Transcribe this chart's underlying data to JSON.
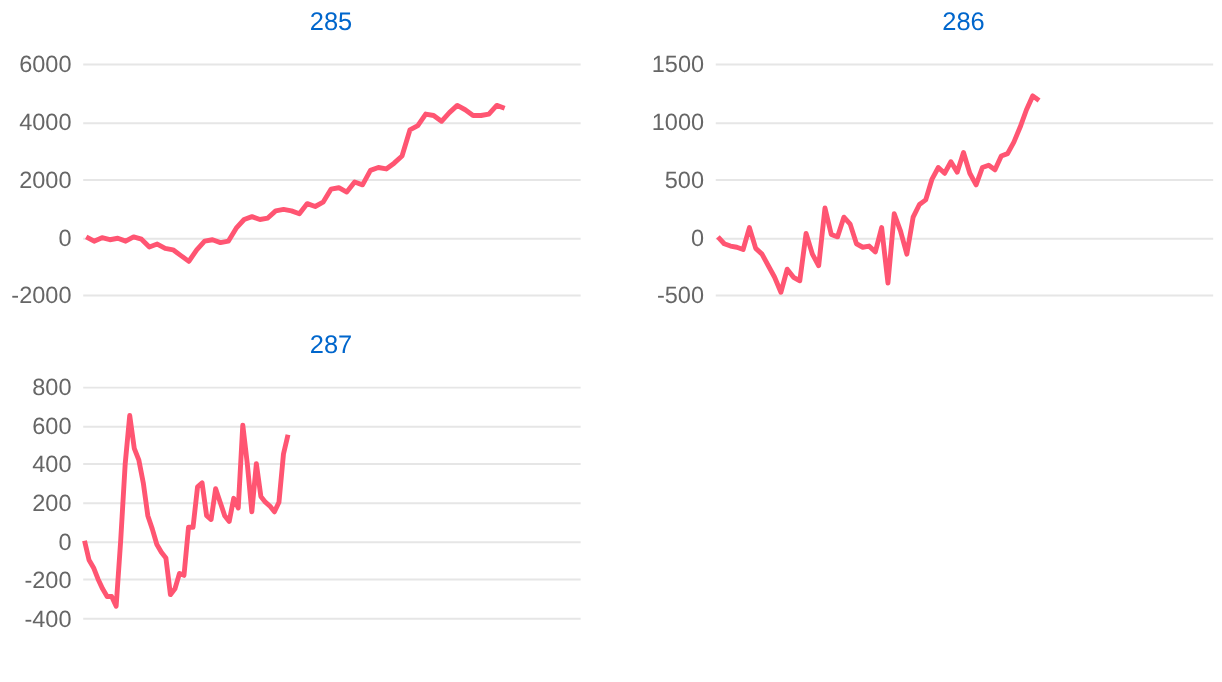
{
  "chart_data": [
    {
      "type": "line",
      "title": "285",
      "tick_labels": "y",
      "grid": "y",
      "ylim": [
        -2000,
        6000
      ],
      "yticks": [
        -2000,
        0,
        2000,
        4000,
        6000
      ],
      "categories": [
        null,
        null,
        null,
        null,
        null,
        null,
        null,
        null,
        null,
        null,
        null,
        null,
        null,
        null,
        null,
        null,
        null,
        null,
        null,
        null,
        null,
        null,
        null,
        null,
        null,
        null,
        null,
        null,
        null,
        null,
        null,
        null,
        null,
        null,
        null,
        null,
        null,
        null,
        null,
        null,
        null,
        null,
        null,
        null,
        null,
        null,
        null,
        null,
        null,
        null,
        null,
        null,
        null,
        null,
        null,
        null,
        null,
        null,
        null,
        null,
        null,
        null,
        null
      ],
      "series": [
        {
          "color": "#ff5572",
          "values": [
            0,
            -150,
            -30,
            -100,
            -50,
            -150,
            0,
            -80,
            -350,
            -250,
            -400,
            -450,
            -650,
            -850,
            -450,
            -150,
            -100,
            -200,
            -150,
            300,
            600,
            700,
            600,
            650,
            900,
            950,
            900,
            800,
            1150,
            1050,
            1200,
            1650,
            1700,
            1550,
            1900,
            1800,
            2300,
            2400,
            2350,
            2550,
            2800,
            3700,
            3850,
            4250,
            4200,
            4000,
            4300,
            4550,
            4400,
            4200,
            4200,
            4250,
            4550,
            4450,
            null,
            null,
            null,
            null,
            null,
            null,
            null,
            null,
            null
          ]
        }
      ]
    },
    {
      "type": "line",
      "title": "286",
      "tick_labels": "y",
      "grid": "y",
      "ylim": [
        -500,
        1500
      ],
      "yticks": [
        -500,
        0,
        500,
        1000,
        1500
      ],
      "categories": [
        null,
        null,
        null,
        null,
        null,
        null,
        null,
        null,
        null,
        null,
        null,
        null,
        null,
        null,
        null,
        null,
        null,
        null,
        null,
        null,
        null,
        null,
        null,
        null,
        null,
        null,
        null,
        null,
        null,
        null,
        null,
        null,
        null,
        null,
        null,
        null,
        null,
        null,
        null,
        null,
        null,
        null,
        null,
        null,
        null,
        null,
        null,
        null,
        null,
        null,
        null,
        null,
        null,
        null,
        null,
        null,
        null,
        null,
        null,
        null,
        null,
        null,
        null,
        null,
        null,
        null,
        null,
        null,
        null,
        null,
        null,
        null,
        null,
        null,
        null,
        null,
        null,
        null,
        null
      ],
      "series": [
        {
          "color": "#ff5572",
          "values": [
            0,
            -60,
            -80,
            -90,
            -110,
            80,
            -100,
            -150,
            -250,
            -350,
            -480,
            -280,
            -350,
            -380,
            30,
            -150,
            -250,
            250,
            20,
            0,
            170,
            110,
            -60,
            -90,
            -80,
            -130,
            80,
            -400,
            200,
            50,
            -150,
            170,
            280,
            320,
            500,
            600,
            550,
            650,
            560,
            730,
            550,
            450,
            600,
            620,
            580,
            700,
            720,
            820,
            950,
            1100,
            1220,
            1180,
            null,
            null,
            null,
            null,
            null,
            null,
            null,
            null,
            null,
            null,
            null,
            null,
            null,
            null,
            null,
            null,
            null,
            null,
            null,
            null,
            null,
            null,
            null,
            null,
            null,
            null,
            null
          ]
        }
      ]
    },
    {
      "type": "line",
      "title": "287",
      "tick_labels": "y",
      "grid": "y",
      "ylim": [
        -400,
        800
      ],
      "yticks": [
        -400,
        -200,
        0,
        200,
        400,
        600,
        800
      ],
      "categories": [
        null,
        null,
        null,
        null,
        null,
        null,
        null,
        null,
        null,
        null,
        null,
        null,
        null,
        null,
        null,
        null,
        null,
        null,
        null,
        null,
        null,
        null,
        null,
        null,
        null,
        null,
        null,
        null,
        null,
        null,
        null,
        null,
        null,
        null,
        null,
        null,
        null,
        null,
        null,
        null,
        null,
        null,
        null,
        null,
        null,
        null,
        null,
        null,
        null,
        null,
        null,
        null,
        null,
        null,
        null,
        null,
        null,
        null,
        null,
        null,
        null,
        null,
        null,
        null,
        null,
        null,
        null,
        null,
        null,
        null,
        null,
        null,
        null,
        null,
        null,
        null,
        null,
        null,
        null,
        null,
        null,
        null,
        null,
        null,
        null,
        null,
        null,
        null,
        null,
        null,
        null,
        null,
        null,
        null,
        null,
        null,
        null,
        null,
        null,
        null,
        null,
        null,
        null,
        null,
        null,
        null,
        null,
        null,
        null,
        null
      ],
      "series": [
        {
          "color": "#ff5572",
          "values": [
            0,
            -100,
            -140,
            -200,
            -250,
            -290,
            -290,
            -340,
            0,
            400,
            650,
            480,
            420,
            300,
            130,
            60,
            -20,
            -60,
            -90,
            -280,
            -250,
            -170,
            -180,
            70,
            70,
            280,
            300,
            130,
            110,
            270,
            200,
            130,
            100,
            220,
            170,
            600,
            400,
            150,
            400,
            230,
            200,
            180,
            150,
            200,
            450,
            550,
            null,
            null,
            null,
            null,
            null,
            null,
            null,
            null,
            null,
            null,
            null,
            null,
            null,
            null,
            null,
            null,
            null,
            null,
            null,
            null,
            null,
            null,
            null,
            null,
            null,
            null,
            null,
            null,
            null,
            null,
            null,
            null,
            null,
            null,
            null,
            null,
            null,
            null,
            null,
            null,
            null,
            null,
            null,
            null,
            null,
            null,
            null,
            null,
            null,
            null,
            null,
            null,
            null,
            null,
            null,
            null,
            null,
            null,
            null,
            null,
            null,
            null,
            null,
            null
          ]
        }
      ]
    }
  ]
}
